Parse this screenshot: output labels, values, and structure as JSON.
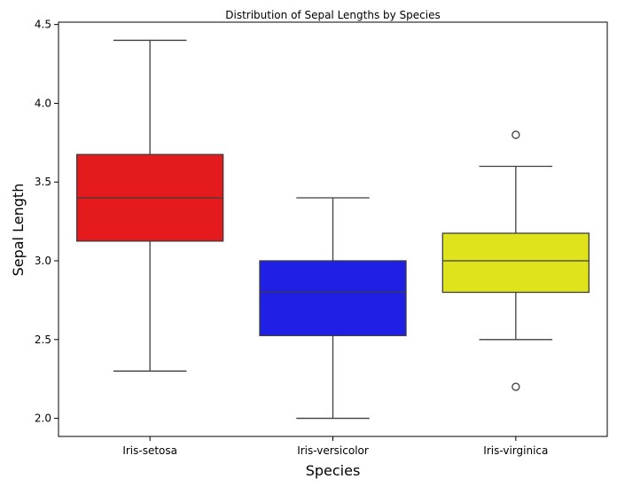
{
  "chart_data": {
    "type": "box",
    "title": "Distribution of Sepal Lengths by Species",
    "xlabel": "Species",
    "ylabel": "Sepal Length",
    "ylim": [
      1.885,
      4.515
    ],
    "yticks": [
      2.0,
      2.5,
      3.0,
      3.5,
      4.0,
      4.5
    ],
    "ytick_labels": [
      "2.0",
      "2.5",
      "3.0",
      "3.5",
      "4.0",
      "4.5"
    ],
    "categories": [
      "Iris-setosa",
      "Iris-versicolor",
      "Iris-virginica"
    ],
    "boxes": [
      {
        "category": "Iris-setosa",
        "whisker_low": 2.3,
        "q1": 3.125,
        "median": 3.4,
        "q3": 3.675,
        "whisker_high": 4.4,
        "outliers": [],
        "color": "#e41a1c"
      },
      {
        "category": "Iris-versicolor",
        "whisker_low": 2.0,
        "q1": 2.525,
        "median": 2.8,
        "q3": 3.0,
        "whisker_high": 3.4,
        "outliers": [],
        "color": "#1f1fe6"
      },
      {
        "category": "Iris-virginica",
        "whisker_low": 2.5,
        "q1": 2.8,
        "median": 3.0,
        "q3": 3.175,
        "whisker_high": 3.6,
        "outliers": [
          3.8,
          2.2
        ],
        "color": "#dfe31b"
      }
    ],
    "grid": false,
    "legend": "none"
  }
}
